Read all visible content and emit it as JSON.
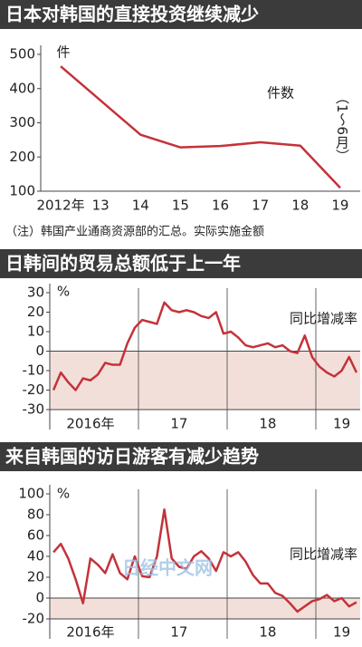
{
  "chart_data": [
    {
      "type": "line",
      "title": "日本对韩国的直接投资继续减少",
      "y_unit": "件",
      "annotation": "（1～6月）",
      "note": "（注）韩国产业通商资源部的汇总。实际实施金额",
      "categories": [
        "2012年",
        "13",
        "14",
        "15",
        "16",
        "17",
        "18",
        "19"
      ],
      "series": [
        {
          "name": "件数",
          "color": "#c4323a",
          "values": [
            465,
            365,
            265,
            228,
            232,
            243,
            233,
            110
          ]
        }
      ],
      "ylim": [
        100,
        500
      ],
      "yticks": [
        100,
        200,
        300,
        400,
        500
      ],
      "grid": false
    },
    {
      "type": "line",
      "title": "日韩间的贸易总额低于上一年",
      "y_unit": "%",
      "categories": [
        null,
        null,
        null,
        null,
        null,
        "2016年",
        null,
        null,
        null,
        null,
        null,
        null,
        null,
        null,
        null,
        null,
        null,
        "17",
        null,
        null,
        null,
        null,
        null,
        null,
        null,
        null,
        null,
        null,
        null,
        "18",
        null,
        null,
        null,
        null,
        null,
        null,
        null,
        null,
        null,
        "19",
        null,
        null
      ],
      "series": [
        {
          "name": "同比增减率",
          "color": "#c4323a",
          "values": [
            -20,
            -11,
            -16,
            -20,
            -14,
            -15,
            -12,
            -6,
            -7,
            -7,
            4,
            12,
            16,
            15,
            14,
            25,
            21,
            20,
            21,
            20,
            18,
            17,
            20,
            9,
            10,
            7,
            3,
            2,
            3,
            4,
            2,
            3,
            0,
            -1,
            8,
            -3,
            -8,
            -11,
            -13,
            -10,
            -3,
            -11
          ]
        }
      ],
      "ylim": [
        -30,
        30
      ],
      "yticks": [
        -30,
        -20,
        -10,
        0,
        10,
        20,
        30
      ],
      "grid": false,
      "negative_shade": "#f3dfda"
    },
    {
      "type": "line",
      "title": "来自韩国的访日游客有减少趋势",
      "y_unit": "%",
      "watermark": "日经中文网",
      "categories": [
        null,
        null,
        null,
        null,
        null,
        "2016年",
        null,
        null,
        null,
        null,
        null,
        null,
        null,
        null,
        null,
        null,
        null,
        "17",
        null,
        null,
        null,
        null,
        null,
        null,
        null,
        null,
        null,
        null,
        null,
        "18",
        null,
        null,
        null,
        null,
        null,
        null,
        null,
        null,
        null,
        "19",
        null,
        null
      ],
      "series": [
        {
          "name": "同比增减率",
          "color": "#c4323a",
          "values": [
            44,
            52,
            38,
            18,
            -5,
            38,
            32,
            24,
            42,
            24,
            18,
            40,
            21,
            20,
            40,
            85,
            38,
            30,
            28,
            40,
            45,
            38,
            26,
            44,
            40,
            44,
            35,
            22,
            14,
            14,
            5,
            2,
            -5,
            -13,
            -8,
            -3,
            -1,
            3,
            -3,
            0,
            -8,
            -4
          ]
        }
      ],
      "ylim": [
        -20,
        100
      ],
      "yticks": [
        -20,
        0,
        20,
        40,
        60,
        80,
        100
      ],
      "grid": false,
      "negative_shade": "#f3dfda"
    }
  ]
}
